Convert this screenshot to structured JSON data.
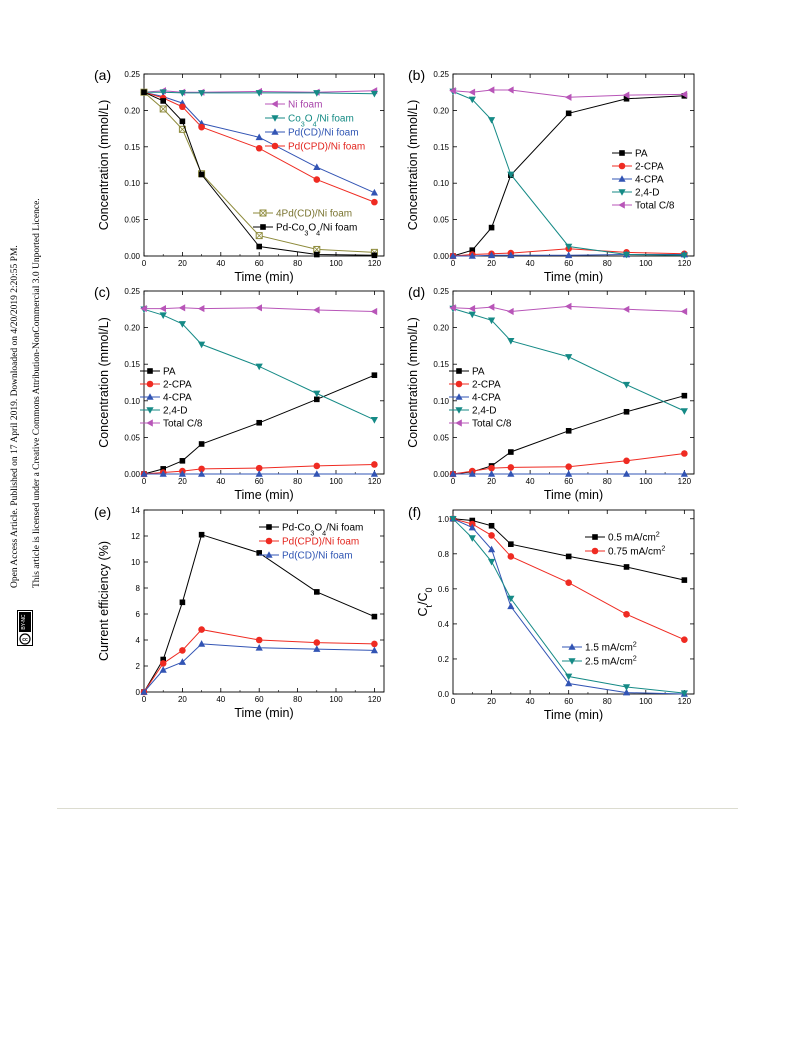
{
  "side_text": {
    "line1": "Open Access Article. Published on 17 April 2019. Downloaded on 4/20/2019 2:20:55 PM.",
    "line2": "This article is licensed under a Creative Commons Attribution-NonCommercial 3.0 Unported Licence.",
    "badge": "BY-NC"
  },
  "colors": {
    "black": "#000000",
    "red": "#ef2b22",
    "blue": "#3254b4",
    "teal": "#158a86",
    "magenta": "#b855b8",
    "olive": "#8d8a3a",
    "text_red": "#e3261f",
    "text_blue": "#2f55b3",
    "text_teal": "#138a84",
    "text_magenta": "#a742a9",
    "text_olive": "#7a7430"
  },
  "chart_data": [
    {
      "id": "a",
      "panel_label": "(a)",
      "type": "line",
      "xlabel": "Time (min)",
      "ylabel": "Concentration (mmol/L)",
      "xlim": [
        0,
        125
      ],
      "ylim": [
        0,
        0.25
      ],
      "xticks": [
        0,
        20,
        40,
        60,
        80,
        100,
        120
      ],
      "yticks": [
        0.0,
        0.05,
        0.1,
        0.15,
        0.2,
        0.25
      ],
      "ytick_labels": [
        "0.00",
        "0.05",
        "0.10",
        "0.15",
        "0.20",
        "0.25"
      ],
      "x": [
        0,
        10,
        20,
        30,
        60,
        90,
        120
      ],
      "series": [
        {
          "name": "Ni foam",
          "marker": "tri-left",
          "color": "magenta",
          "values": [
            0.225,
            0.227,
            0.225,
            0.225,
            0.226,
            0.225,
            0.227
          ]
        },
        {
          "name": "Co3O4/Ni foam",
          "marker": "tri-down",
          "color": "teal",
          "values": [
            0.225,
            0.225,
            0.224,
            0.224,
            0.224,
            0.224,
            0.223
          ]
        },
        {
          "name": "Pd(CD)/Ni foam",
          "marker": "tri-up",
          "color": "blue",
          "values": [
            0.225,
            0.219,
            0.21,
            0.182,
            0.163,
            0.122,
            0.087
          ]
        },
        {
          "name": "Pd(CPD)/Ni foam",
          "marker": "circle",
          "color": "red",
          "values": [
            0.225,
            0.217,
            0.205,
            0.177,
            0.148,
            0.105,
            0.074
          ]
        },
        {
          "name": "4Pd(CD)/Ni foam",
          "marker": "square-x",
          "color": "olive",
          "values": [
            0.225,
            0.202,
            0.174,
            0.113,
            0.028,
            0.009,
            0.005
          ]
        },
        {
          "name": "Pd-Co3O4/Ni foam",
          "marker": "square",
          "color": "black",
          "values": [
            0.225,
            0.213,
            0.185,
            0.112,
            0.013,
            0.002,
            0.001
          ]
        }
      ],
      "legend": [
        {
          "text": "Ni foam",
          "series": 0,
          "text_color": "text_magenta"
        },
        {
          "text": "Co3O4/Ni foam",
          "series": 1,
          "text_color": "text_teal"
        },
        {
          "text": "Pd(CD)/Ni foam",
          "series": 2,
          "text_color": "text_blue"
        },
        {
          "text": "Pd(CPD)/Ni foam",
          "series": 3,
          "text_color": "text_red"
        },
        {
          "text": "4Pd(CD)/Ni foam",
          "series": 4,
          "text_color": "text_olive"
        },
        {
          "text": "Pd-Co3O4/Ni foam",
          "series": 5,
          "text_color": "black"
        }
      ]
    },
    {
      "id": "b",
      "panel_label": "(b)",
      "type": "line",
      "xlabel": "Time (min)",
      "ylabel": "Concentration (mmol/L)",
      "xlim": [
        0,
        125
      ],
      "ylim": [
        0,
        0.25
      ],
      "xticks": [
        0,
        20,
        40,
        60,
        80,
        100,
        120
      ],
      "yticks": [
        0.0,
        0.05,
        0.1,
        0.15,
        0.2,
        0.25
      ],
      "ytick_labels": [
        "0.00",
        "0.05",
        "0.10",
        "0.15",
        "0.20",
        "0.25"
      ],
      "x": [
        0,
        10,
        20,
        30,
        60,
        90,
        120
      ],
      "series": [
        {
          "name": "PA",
          "marker": "square",
          "color": "black",
          "values": [
            0.0,
            0.008,
            0.039,
            0.111,
            0.196,
            0.216,
            0.22
          ]
        },
        {
          "name": "2-CPA",
          "marker": "circle",
          "color": "red",
          "values": [
            0.0,
            0.002,
            0.003,
            0.004,
            0.01,
            0.005,
            0.003
          ]
        },
        {
          "name": "4-CPA",
          "marker": "tri-up",
          "color": "blue",
          "values": [
            0.0,
            0.0,
            0.001,
            0.001,
            0.001,
            0.002,
            0.002
          ]
        },
        {
          "name": "2,4-D",
          "marker": "tri-down",
          "color": "teal",
          "values": [
            0.226,
            0.215,
            0.187,
            0.112,
            0.013,
            0.002,
            0.001
          ]
        },
        {
          "name": "Total C/8",
          "marker": "tri-left",
          "color": "magenta",
          "values": [
            0.227,
            0.225,
            0.228,
            0.228,
            0.218,
            0.221,
            0.222
          ]
        }
      ],
      "legend": [
        {
          "text": "PA",
          "series": 0,
          "text_color": "black"
        },
        {
          "text": "2-CPA",
          "series": 1,
          "text_color": "black"
        },
        {
          "text": "4-CPA",
          "series": 2,
          "text_color": "black"
        },
        {
          "text": "2,4-D",
          "series": 3,
          "text_color": "black"
        },
        {
          "text": "Total C/8",
          "series": 4,
          "text_color": "black"
        }
      ]
    },
    {
      "id": "c",
      "panel_label": "(c)",
      "type": "line",
      "xlabel": "Time (min)",
      "ylabel": "Concentration (mmol/L)",
      "xlim": [
        0,
        125
      ],
      "ylim": [
        0,
        0.25
      ],
      "xticks": [
        0,
        20,
        40,
        60,
        80,
        100,
        120
      ],
      "yticks": [
        0.0,
        0.05,
        0.1,
        0.15,
        0.2,
        0.25
      ],
      "ytick_labels": [
        "0.00",
        "0.05",
        "0.10",
        "0.15",
        "0.20",
        "0.25"
      ],
      "x": [
        0,
        10,
        20,
        30,
        60,
        90,
        120
      ],
      "series": [
        {
          "name": "PA",
          "marker": "square",
          "color": "black",
          "values": [
            0.0,
            0.007,
            0.018,
            0.041,
            0.07,
            0.102,
            0.135
          ]
        },
        {
          "name": "2-CPA",
          "marker": "circle",
          "color": "red",
          "values": [
            0.0,
            0.002,
            0.004,
            0.007,
            0.008,
            0.011,
            0.013
          ]
        },
        {
          "name": "4-CPA",
          "marker": "tri-up",
          "color": "blue",
          "values": [
            0.0,
            0.0,
            0.0,
            0.0,
            0.0,
            0.0,
            0.0
          ]
        },
        {
          "name": "2,4-D",
          "marker": "tri-down",
          "color": "teal",
          "values": [
            0.225,
            0.217,
            0.205,
            0.177,
            0.147,
            0.11,
            0.074
          ]
        },
        {
          "name": "Total C/8",
          "marker": "tri-left",
          "color": "magenta",
          "values": [
            0.226,
            0.226,
            0.227,
            0.226,
            0.227,
            0.224,
            0.222
          ]
        }
      ],
      "legend": [
        {
          "text": "PA",
          "series": 0,
          "text_color": "black"
        },
        {
          "text": "2-CPA",
          "series": 1,
          "text_color": "black"
        },
        {
          "text": "4-CPA",
          "series": 2,
          "text_color": "black"
        },
        {
          "text": "2,4-D",
          "series": 3,
          "text_color": "black"
        },
        {
          "text": "Total C/8",
          "series": 4,
          "text_color": "black"
        }
      ]
    },
    {
      "id": "d",
      "panel_label": "(d)",
      "type": "line",
      "xlabel": "Time (min)",
      "ylabel": "Concentration (mmol/L)",
      "xlim": [
        0,
        125
      ],
      "ylim": [
        0,
        0.25
      ],
      "xticks": [
        0,
        20,
        40,
        60,
        80,
        100,
        120
      ],
      "yticks": [
        0.0,
        0.05,
        0.1,
        0.15,
        0.2,
        0.25
      ],
      "ytick_labels": [
        "0.00",
        "0.05",
        "0.10",
        "0.15",
        "0.20",
        "0.25"
      ],
      "x": [
        0,
        10,
        20,
        30,
        60,
        90,
        120
      ],
      "series": [
        {
          "name": "PA",
          "marker": "square",
          "color": "black",
          "values": [
            0.0,
            0.003,
            0.011,
            0.03,
            0.059,
            0.085,
            0.107
          ]
        },
        {
          "name": "2-CPA",
          "marker": "circle",
          "color": "red",
          "values": [
            0.0,
            0.004,
            0.008,
            0.009,
            0.01,
            0.018,
            0.028
          ]
        },
        {
          "name": "4-CPA",
          "marker": "tri-up",
          "color": "blue",
          "values": [
            0.0,
            0.0,
            0.0,
            0.0,
            0.0,
            0.0,
            0.0
          ]
        },
        {
          "name": "2,4-D",
          "marker": "tri-down",
          "color": "teal",
          "values": [
            0.226,
            0.218,
            0.21,
            0.182,
            0.16,
            0.122,
            0.086
          ]
        },
        {
          "name": "Total C/8",
          "marker": "tri-left",
          "color": "magenta",
          "values": [
            0.227,
            0.226,
            0.228,
            0.222,
            0.229,
            0.225,
            0.222
          ]
        }
      ],
      "legend": [
        {
          "text": "PA",
          "series": 0,
          "text_color": "black"
        },
        {
          "text": "2-CPA",
          "series": 1,
          "text_color": "black"
        },
        {
          "text": "4-CPA",
          "series": 2,
          "text_color": "black"
        },
        {
          "text": "2,4-D",
          "series": 3,
          "text_color": "black"
        },
        {
          "text": "Total C/8",
          "series": 4,
          "text_color": "black"
        }
      ]
    },
    {
      "id": "e",
      "panel_label": "(e)",
      "type": "line",
      "xlabel": "Time (min)",
      "ylabel": "Current efficiency (%)",
      "xlim": [
        0,
        125
      ],
      "ylim": [
        0,
        14
      ],
      "xticks": [
        0,
        20,
        40,
        60,
        80,
        100,
        120
      ],
      "yticks": [
        0,
        2,
        4,
        6,
        8,
        10,
        12,
        14
      ],
      "ytick_labels": [
        "0",
        "2",
        "4",
        "6",
        "8",
        "10",
        "12",
        "14"
      ],
      "x": [
        0,
        10,
        20,
        30,
        60,
        90,
        120
      ],
      "series": [
        {
          "name": "Pd-Co3O4/Ni foam",
          "marker": "square",
          "color": "black",
          "values": [
            0,
            2.5,
            6.9,
            12.1,
            10.7,
            7.7,
            5.8
          ]
        },
        {
          "name": "Pd(CPD)/Ni foam",
          "marker": "circle",
          "color": "red",
          "values": [
            0,
            2.2,
            3.2,
            4.8,
            4.0,
            3.8,
            3.7
          ]
        },
        {
          "name": "Pd(CD)/Ni foam",
          "marker": "tri-up",
          "color": "blue",
          "values": [
            0,
            1.7,
            2.3,
            3.7,
            3.4,
            3.3,
            3.2
          ]
        }
      ],
      "legend": [
        {
          "text": "Pd-Co3O4/Ni foam",
          "series": 0,
          "text_color": "black"
        },
        {
          "text": "Pd(CPD)/Ni foam",
          "series": 1,
          "text_color": "text_red"
        },
        {
          "text": "Pd(CD)/Ni foam",
          "series": 2,
          "text_color": "text_blue"
        }
      ]
    },
    {
      "id": "f",
      "panel_label": "(f)",
      "type": "line",
      "xlabel": "Time (min)",
      "ylabel": "Ct/C0",
      "xlim": [
        0,
        125
      ],
      "ylim": [
        0,
        1.05
      ],
      "xticks": [
        0,
        20,
        40,
        60,
        80,
        100,
        120
      ],
      "yticks": [
        0.0,
        0.2,
        0.4,
        0.6,
        0.8,
        1.0
      ],
      "ytick_labels": [
        "0.0",
        "0.2",
        "0.4",
        "0.6",
        "0.8",
        "1.0"
      ],
      "x": [
        0,
        10,
        20,
        30,
        60,
        90,
        120
      ],
      "series": [
        {
          "name": "0.5 mA/cm2",
          "marker": "square",
          "color": "black",
          "values": [
            1.0,
            0.99,
            0.96,
            0.855,
            0.785,
            0.725,
            0.65
          ]
        },
        {
          "name": "0.75 mA/cm2",
          "marker": "circle",
          "color": "red",
          "values": [
            1.0,
            0.97,
            0.905,
            0.785,
            0.635,
            0.455,
            0.31
          ]
        },
        {
          "name": "1.5 mA/cm2",
          "marker": "tri-up",
          "color": "blue",
          "values": [
            1.0,
            0.95,
            0.825,
            0.5,
            0.06,
            0.008,
            0.0
          ]
        },
        {
          "name": "2.5 mA/cm2",
          "marker": "tri-down",
          "color": "teal",
          "values": [
            1.0,
            0.89,
            0.755,
            0.545,
            0.1,
            0.04,
            0.005
          ]
        }
      ],
      "legend": [
        {
          "text": "0.5 mA/cm2",
          "series": 0,
          "text_color": "black"
        },
        {
          "text": "0.75  mA/cm2",
          "series": 1,
          "text_color": "black"
        },
        {
          "text": "1.5 mA/cm2",
          "series": 2,
          "text_color": "black"
        },
        {
          "text": "2.5 mA/cm2",
          "series": 3,
          "text_color": "black"
        }
      ]
    }
  ]
}
